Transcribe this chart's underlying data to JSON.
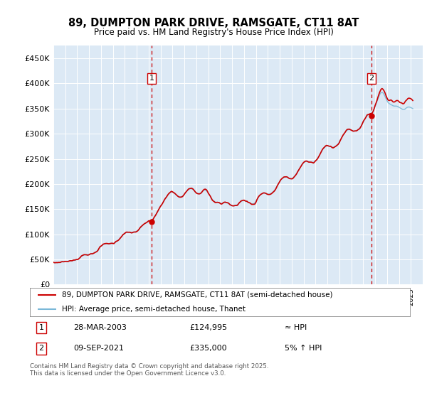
{
  "title": "89, DUMPTON PARK DRIVE, RAMSGATE, CT11 8AT",
  "subtitle": "Price paid vs. HM Land Registry's House Price Index (HPI)",
  "background_color": "#dce9f5",
  "hpi_color": "#7ab8d8",
  "price_color": "#cc0000",
  "ylim": [
    0,
    475000
  ],
  "yticks": [
    0,
    50000,
    100000,
    150000,
    200000,
    250000,
    300000,
    350000,
    400000,
    450000
  ],
  "ytick_labels": [
    "£0",
    "£50K",
    "£100K",
    "£150K",
    "£200K",
    "£250K",
    "£300K",
    "£350K",
    "£400K",
    "£450K"
  ],
  "purchase1_year": 2003.24,
  "purchase1_price": 124995,
  "purchase1_label": "1",
  "purchase2_year": 2021.69,
  "purchase2_price": 335000,
  "purchase2_label": "2",
  "legend_line1": "89, DUMPTON PARK DRIVE, RAMSGATE, CT11 8AT (semi-detached house)",
  "legend_line2": "HPI: Average price, semi-detached house, Thanet",
  "table_row1": [
    "1",
    "28-MAR-2003",
    "£124,995",
    "≈ HPI"
  ],
  "table_row2": [
    "2",
    "09-SEP-2021",
    "£335,000",
    "5% ↑ HPI"
  ],
  "footnote": "Contains HM Land Registry data © Crown copyright and database right 2025.\nThis data is licensed under the Open Government Licence v3.0.",
  "xmin": 1995,
  "xmax": 2026
}
